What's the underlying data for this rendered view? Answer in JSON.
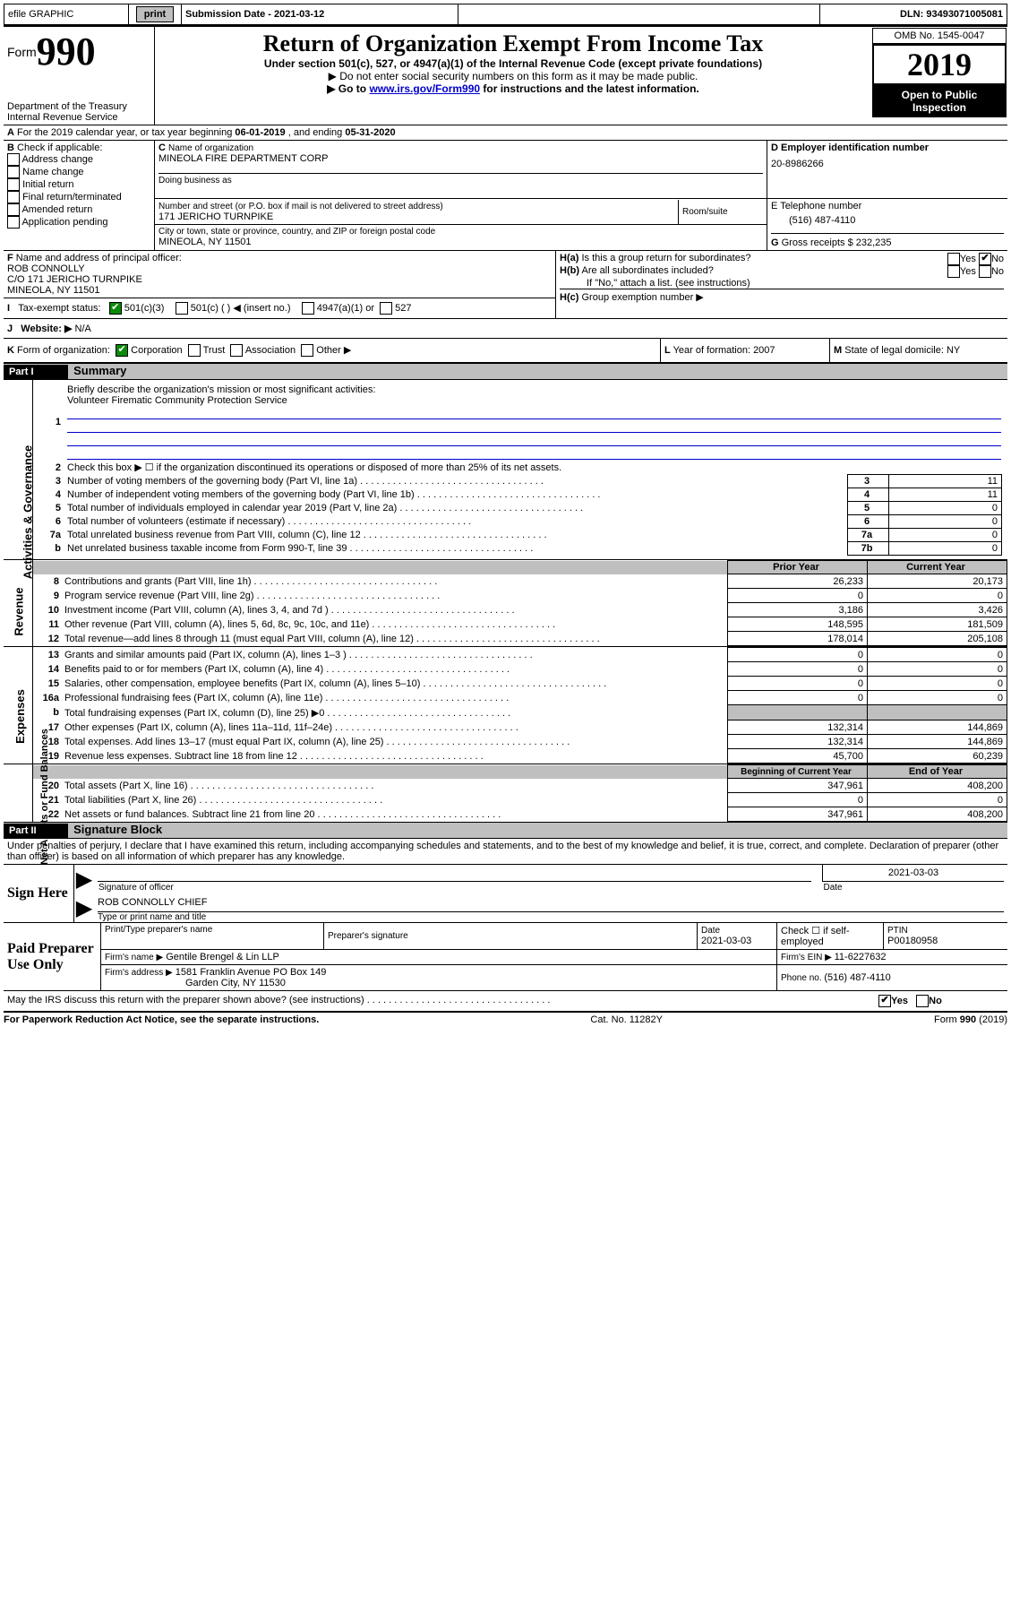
{
  "topbar": {
    "efile_label": "efile GRAPHIC",
    "print_btn": "print",
    "sub_label": "Submission Date - 2021-03-12",
    "dln_label": "DLN: 93493071005081"
  },
  "header": {
    "form_word": "Form",
    "form_num": "990",
    "title": "Return of Organization Exempt From Income Tax",
    "sub1": "Under section 501(c), 527, or 4947(a)(1) of the Internal Revenue Code (except private foundations)",
    "sub2": "▶ Do not enter social security numbers on this form as it may be made public.",
    "sub3_pre": "▶ Go to ",
    "sub3_link": "www.irs.gov/Form990",
    "sub3_post": " for instructions and the latest information.",
    "omb": "OMB No. 1545-0047",
    "year": "2019",
    "open": "Open to Public Inspection",
    "dept": "Department of the Treasury",
    "irs": "Internal Revenue Service"
  },
  "a_line": {
    "a_label": "A",
    "text1": "For the 2019 calendar year, or tax year beginning ",
    "begin": "06-01-2019",
    "text2": " , and ending ",
    "end": "05-31-2020"
  },
  "b": {
    "label": "B",
    "check_label": " Check if applicable:",
    "items": [
      "Address change",
      "Name change",
      "Initial return",
      "Final return/terminated",
      "Amended return",
      "Application pending"
    ]
  },
  "c": {
    "label": "C",
    "name_label": "Name of organization",
    "name": "MINEOLA FIRE DEPARTMENT CORP",
    "dba_label": "Doing business as",
    "dba": "",
    "street_label": "Number and street (or P.O. box if mail is not delivered to street address)",
    "room_label": "Room/suite",
    "street": "171 JERICHO TURNPIKE",
    "city_label": "City or town, state or province, country, and ZIP or foreign postal code",
    "city": "MINEOLA, NY  11501"
  },
  "d": {
    "label": "D Employer identification number",
    "value": "20-8986266"
  },
  "e": {
    "label": "E Telephone number",
    "value": "(516) 487-4110"
  },
  "g": {
    "label": "G",
    "text": " Gross receipts $ 232,235"
  },
  "f": {
    "label": "F",
    "text": "  Name and address of principal officer:",
    "name": "ROB CONNOLLY",
    "addr1": "C/O 171 JERICHO TURNPIKE",
    "addr2": "MINEOLA, NY  11501"
  },
  "h": {
    "a_label": "H(a)",
    "a_text": "  Is this a group return for subordinates?",
    "b_label": "H(b)",
    "b_text": "  Are all subordinates included?",
    "note": "If \"No,\" attach a list. (see instructions)",
    "c_label": "H(c)",
    "c_text": "  Group exemption number ▶",
    "yes": "Yes",
    "no": "No"
  },
  "i": {
    "label": "I",
    "text": "Tax-exempt status:",
    "opt1": "501(c)(3)",
    "opt2": "501(c) (   ) ◀ (insert no.)",
    "opt3": "4947(a)(1) or",
    "opt4": "527"
  },
  "j": {
    "label": "J",
    "text": "Website: ▶",
    "value": "  N/A"
  },
  "k": {
    "label": "K",
    "text": " Form of organization:",
    "corp": "Corporation",
    "trust": "Trust",
    "assoc": "Association",
    "other": "Other ▶"
  },
  "l": {
    "label": "L",
    "text": " Year of formation: 2007"
  },
  "m": {
    "label": "M",
    "text": " State of legal domicile: NY"
  },
  "part1": {
    "bar": "Part I",
    "title": "Summary",
    "q1_num": "1",
    "q1_text": "Briefly describe the organization's mission or most significant activities:",
    "q1_ans": "Volunteer Firematic Community Protection Service",
    "q2_num": "2",
    "q2_text": "Check this box ▶ ☐  if the organization discontinued its operations or disposed of more than 25% of its net assets.",
    "lines": [
      {
        "n": "3",
        "t": "Number of voting members of the governing body (Part VI, line 1a)",
        "b": "3",
        "v": "11"
      },
      {
        "n": "4",
        "t": "Number of independent voting members of the governing body (Part VI, line 1b)",
        "b": "4",
        "v": "11"
      },
      {
        "n": "5",
        "t": "Total number of individuals employed in calendar year 2019 (Part V, line 2a)",
        "b": "5",
        "v": "0"
      },
      {
        "n": "6",
        "t": "Total number of volunteers (estimate if necessary)",
        "b": "6",
        "v": "0"
      },
      {
        "n": "7a",
        "t": "Total unrelated business revenue from Part VIII, column (C), line 12",
        "b": "7a",
        "v": "0"
      },
      {
        "n": "b",
        "t": "Net unrelated business taxable income from Form 990-T, line 39",
        "b": "7b",
        "v": "0"
      }
    ],
    "prior_hdr": "Prior Year",
    "curr_hdr": "Current Year",
    "rev": [
      {
        "n": "8",
        "t": "Contributions and grants (Part VIII, line 1h)",
        "p": "26,233",
        "c": "20,173"
      },
      {
        "n": "9",
        "t": "Program service revenue (Part VIII, line 2g)",
        "p": "0",
        "c": "0"
      },
      {
        "n": "10",
        "t": "Investment income (Part VIII, column (A), lines 3, 4, and 7d )",
        "p": "3,186",
        "c": "3,426"
      },
      {
        "n": "11",
        "t": "Other revenue (Part VIII, column (A), lines 5, 6d, 8c, 9c, 10c, and 11e)",
        "p": "148,595",
        "c": "181,509"
      },
      {
        "n": "12",
        "t": "Total revenue—add lines 8 through 11 (must equal Part VIII, column (A), line 12)",
        "p": "178,014",
        "c": "205,108"
      }
    ],
    "exp": [
      {
        "n": "13",
        "t": "Grants and similar amounts paid (Part IX, column (A), lines 1–3 )",
        "p": "0",
        "c": "0"
      },
      {
        "n": "14",
        "t": "Benefits paid to or for members (Part IX, column (A), line 4)",
        "p": "0",
        "c": "0"
      },
      {
        "n": "15",
        "t": "Salaries, other compensation, employee benefits (Part IX, column (A), lines 5–10)",
        "p": "0",
        "c": "0"
      },
      {
        "n": "16a",
        "t": "Professional fundraising fees (Part IX, column (A), line 11e)",
        "p": "0",
        "c": "0"
      },
      {
        "n": "b",
        "t": "Total fundraising expenses (Part IX, column (D), line 25) ▶0",
        "p": "",
        "c": "",
        "grey": true
      },
      {
        "n": "17",
        "t": "Other expenses (Part IX, column (A), lines 11a–11d, 11f–24e)",
        "p": "132,314",
        "c": "144,869"
      },
      {
        "n": "18",
        "t": "Total expenses. Add lines 13–17 (must equal Part IX, column (A), line 25)",
        "p": "132,314",
        "c": "144,869"
      },
      {
        "n": "19",
        "t": "Revenue less expenses. Subtract line 18 from line 12",
        "p": "45,700",
        "c": "60,239"
      }
    ],
    "bcy_hdr": "Beginning of Current Year",
    "eoy_hdr": "End of Year",
    "net": [
      {
        "n": "20",
        "t": "Total assets (Part X, line 16)",
        "p": "347,961",
        "c": "408,200"
      },
      {
        "n": "21",
        "t": "Total liabilities (Part X, line 26)",
        "p": "0",
        "c": "0"
      },
      {
        "n": "22",
        "t": "Net assets or fund balances. Subtract line 21 from line 20",
        "p": "347,961",
        "c": "408,200"
      }
    ],
    "v_gov": "Activities & Governance",
    "v_rev": "Revenue",
    "v_exp": "Expenses",
    "v_net": "Net Assets or Fund Balances"
  },
  "part2": {
    "bar": "Part II",
    "title": "Signature Block",
    "jurat": "Under penalties of perjury, I declare that I have examined this return, including accompanying schedules and statements, and to the best of my knowledge and belief, it is true, correct, and complete. Declaration of preparer (other than officer) is based on all information of which preparer has any knowledge.",
    "sign_here": "Sign Here",
    "sig_off": "Signature of officer",
    "sig_date": "2021-03-03",
    "date_lbl": "Date",
    "name_title": "ROB CONNOLLY CHIEF",
    "name_lbl": "Type or print name and title",
    "paid": "Paid Preparer Use Only",
    "prep_name_lbl": "Print/Type preparer's name",
    "prep_sig_lbl": "Preparer's signature",
    "prep_date_lbl": "Date",
    "prep_date": "2021-03-03",
    "self_emp": "Check ☐ if self-employed",
    "ptin_lbl": "PTIN",
    "ptin": "P00180958",
    "firm_name_lbl": "Firm's name    ▶",
    "firm_name": " Gentile Brengel & Lin LLP",
    "firm_ein_lbl": "Firm's EIN ▶ ",
    "firm_ein": "11-6227632",
    "firm_addr_lbl": "Firm's address ▶",
    "firm_addr1": "1581 Franklin Avenue PO Box 149",
    "firm_addr2": "Garden City, NY  11530",
    "phone_lbl": "Phone no. ",
    "phone": "(516) 487-4110",
    "discuss": "May the IRS discuss this return with the preparer shown above? (see instructions)",
    "yes": "Yes",
    "no": "No"
  },
  "footer": {
    "left": "For Paperwork Reduction Act Notice, see the separate instructions.",
    "mid": "Cat. No. 11282Y",
    "right": "Form 990 (2019)"
  }
}
